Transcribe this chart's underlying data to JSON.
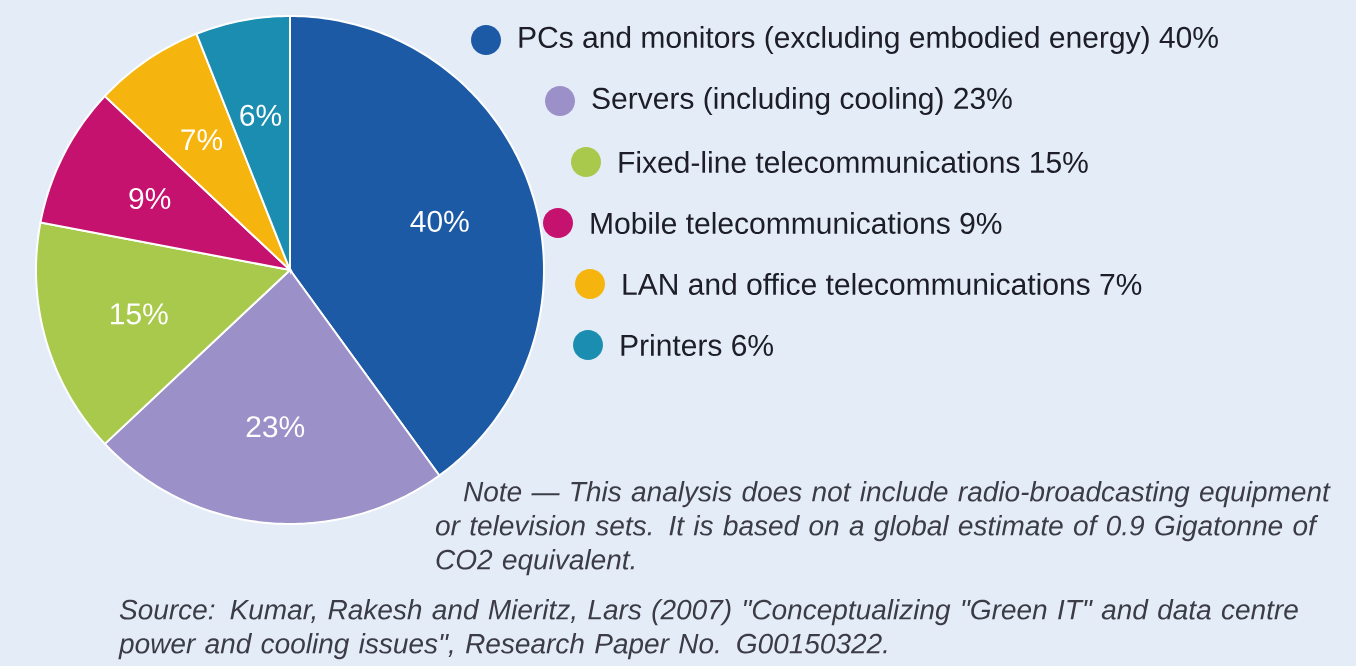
{
  "chart_data": {
    "type": "pie",
    "categories": [
      "PCs and monitors (excluding embodied energy) 40%",
      "Servers (including cooling) 23%",
      "Fixed-line telecommunications 15%",
      "Mobile telecommunications 9%",
      "LAN and office telecommunications 7%",
      "Printers 6%"
    ],
    "values": [
      40,
      23,
      15,
      9,
      7,
      6
    ],
    "colors": [
      "#1d5aa6",
      "#9c90c8",
      "#a8c94c",
      "#c4126e",
      "#f6b40e",
      "#1b8db0"
    ],
    "value_labels": [
      "40%",
      "23%",
      "15%",
      "9%",
      "7%",
      "6%"
    ],
    "legend": "right",
    "annotations": [
      "Note — This analysis does not include radio-broadcasting equipment or television sets. It is based on a global estimate of 0.9 Gigatonne of CO2 equivalent.",
      "Source: Kumar, Rakesh and Mieritz, Lars (2007) \"Conceptualizing \"Green IT\" and data centre power and cooling issues\", Research Paper No. G00150322."
    ]
  }
}
